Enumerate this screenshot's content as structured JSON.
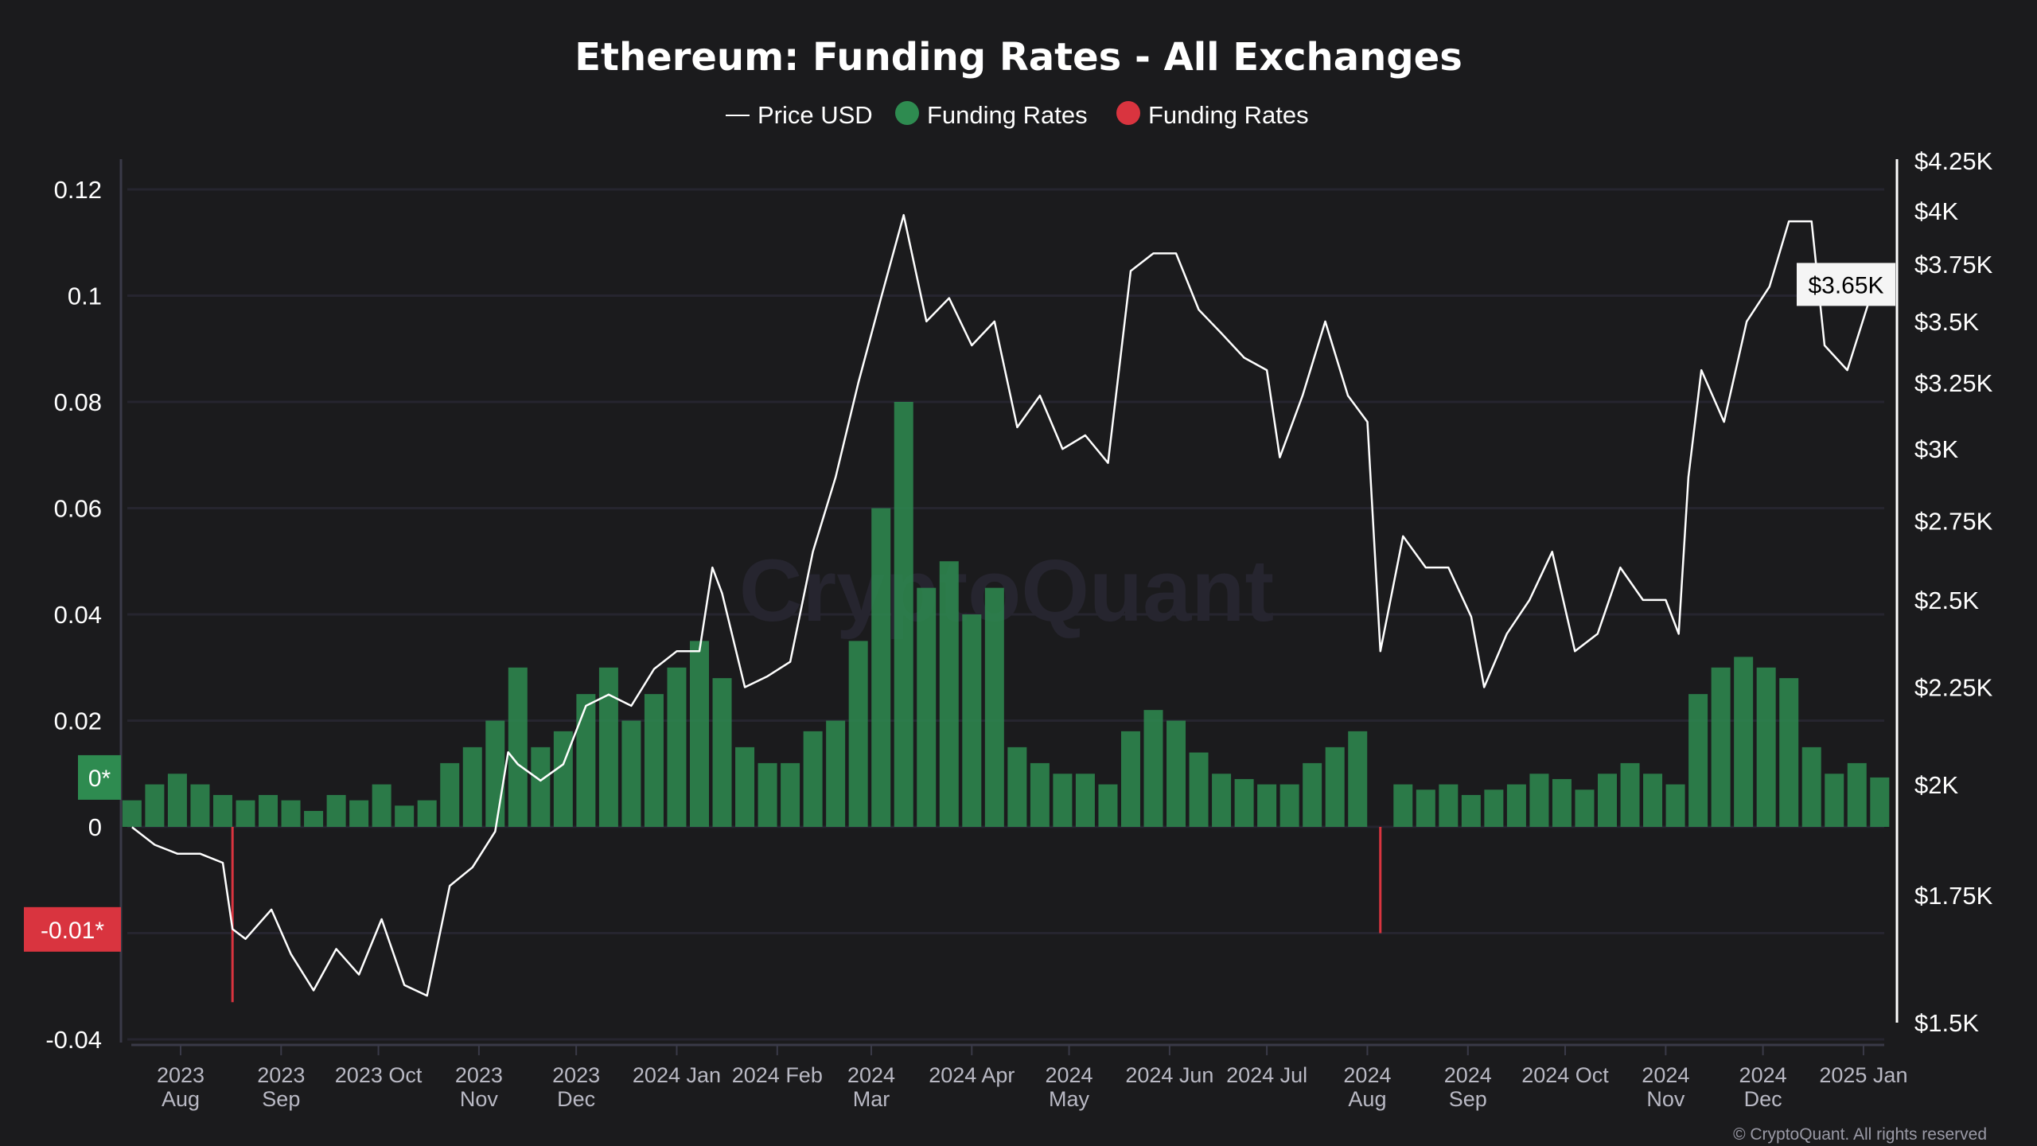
{
  "chart_data": {
    "type": "bar+line",
    "title": "Ethereum: Funding Rates - All Exchanges",
    "watermark": "CryptoQuant",
    "copyright": "© CryptoQuant. All rights reserved",
    "legend": {
      "placement": "top-center",
      "items": [
        {
          "label": "Price USD",
          "marker": "line",
          "color": "#ffffff"
        },
        {
          "label": "Funding Rates",
          "marker": "dot",
          "color": "#2e8b50"
        },
        {
          "label": "Funding Rates",
          "marker": "dot",
          "color": "#d9343f"
        }
      ]
    },
    "colors": {
      "background": "#1b1b1d",
      "positive": "#2e8b50",
      "negative": "#d9343f",
      "price": "#ffffff",
      "grid": "#26252f"
    },
    "left_axis": {
      "range": [
        -0.04,
        0.12
      ],
      "gridlines": [
        0.12,
        0.1,
        0.08,
        0.06,
        0.04,
        0.02,
        0,
        -0.02,
        -0.04
      ],
      "labels": [
        {
          "v": 0.12,
          "t": "0.12"
        },
        {
          "v": 0.1,
          "t": "0.1"
        },
        {
          "v": 0.08,
          "t": "0.08"
        },
        {
          "v": 0.06,
          "t": "0.06"
        },
        {
          "v": 0.04,
          "t": "0.04"
        },
        {
          "v": 0.02,
          "t": "0.02"
        },
        {
          "v": 0,
          "t": "0"
        },
        {
          "v": -0.04,
          "t": "-0.04"
        }
      ]
    },
    "right_axis": {
      "scale": "log",
      "labels": [
        {
          "v": 4250,
          "t": "$4.25K"
        },
        {
          "v": 4000,
          "t": "$4K"
        },
        {
          "v": 3750,
          "t": "$3.75K"
        },
        {
          "v": 3500,
          "t": "$3.5K"
        },
        {
          "v": 3250,
          "t": "$3.25K"
        },
        {
          "v": 3000,
          "t": "$3K"
        },
        {
          "v": 2750,
          "t": "$2.75K"
        },
        {
          "v": 2500,
          "t": "$2.5K"
        },
        {
          "v": 2250,
          "t": "$2.25K"
        },
        {
          "v": 2000,
          "t": "$2K"
        },
        {
          "v": 1750,
          "t": "$1.75K"
        },
        {
          "v": 1500,
          "t": "$1.5K"
        }
      ]
    },
    "badges": [
      {
        "text": "0*",
        "axis": "left",
        "v": 0.0093,
        "bg": "#2e8b50",
        "fg": "#ffffff"
      },
      {
        "text": "-0.01*",
        "axis": "left",
        "v": -0.0193,
        "bg": "#d9343f",
        "fg": "#ffffff"
      },
      {
        "text": "$3.65K",
        "axis": "right",
        "v": 3660,
        "bg": "#f5f5f5",
        "fg": "#000000"
      }
    ],
    "x_ticks": [
      {
        "date": "2023-08-01",
        "lines": [
          "2023",
          "Aug"
        ]
      },
      {
        "date": "2023-09-01",
        "lines": [
          "2023",
          "Sep"
        ]
      },
      {
        "date": "2023-10-01",
        "lines": [
          "2023 Oct"
        ]
      },
      {
        "date": "2023-11-01",
        "lines": [
          "2023",
          "Nov"
        ]
      },
      {
        "date": "2023-12-01",
        "lines": [
          "2023",
          "Dec"
        ]
      },
      {
        "date": "2024-01-01",
        "lines": [
          "2024 Jan"
        ]
      },
      {
        "date": "2024-02-01",
        "lines": [
          "2024 Feb"
        ]
      },
      {
        "date": "2024-03-01",
        "lines": [
          "2024",
          "Mar"
        ]
      },
      {
        "date": "2024-04-01",
        "lines": [
          "2024 Apr"
        ]
      },
      {
        "date": "2024-05-01",
        "lines": [
          "2024",
          "May"
        ]
      },
      {
        "date": "2024-06-01",
        "lines": [
          "2024 Jun"
        ]
      },
      {
        "date": "2024-07-01",
        "lines": [
          "2024 Jul"
        ]
      },
      {
        "date": "2024-08-01",
        "lines": [
          "2024",
          "Aug"
        ]
      },
      {
        "date": "2024-09-01",
        "lines": [
          "2024",
          "Sep"
        ]
      },
      {
        "date": "2024-10-01",
        "lines": [
          "2024 Oct"
        ]
      },
      {
        "date": "2024-11-01",
        "lines": [
          "2024",
          "Nov"
        ]
      },
      {
        "date": "2024-12-01",
        "lines": [
          "2024",
          "Dec"
        ]
      },
      {
        "date": "2025-01-01",
        "lines": [
          "2025 Jan"
        ]
      }
    ],
    "price_usd": [
      [
        "2023-07-17",
        1900
      ],
      [
        "2023-07-24",
        1860
      ],
      [
        "2023-07-31",
        1840
      ],
      [
        "2023-08-07",
        1840
      ],
      [
        "2023-08-14",
        1820
      ],
      [
        "2023-08-17",
        1680
      ],
      [
        "2023-08-21",
        1660
      ],
      [
        "2023-08-29",
        1720
      ],
      [
        "2023-09-04",
        1630
      ],
      [
        "2023-09-11",
        1560
      ],
      [
        "2023-09-18",
        1640
      ],
      [
        "2023-09-25",
        1590
      ],
      [
        "2023-10-02",
        1700
      ],
      [
        "2023-10-09",
        1570
      ],
      [
        "2023-10-16",
        1550
      ],
      [
        "2023-10-23",
        1770
      ],
      [
        "2023-10-30",
        1810
      ],
      [
        "2023-11-06",
        1890
      ],
      [
        "2023-11-10",
        2080
      ],
      [
        "2023-11-13",
        2050
      ],
      [
        "2023-11-20",
        2010
      ],
      [
        "2023-11-27",
        2050
      ],
      [
        "2023-12-04",
        2200
      ],
      [
        "2023-12-11",
        2230
      ],
      [
        "2023-12-18",
        2200
      ],
      [
        "2023-12-25",
        2300
      ],
      [
        "2024-01-01",
        2350
      ],
      [
        "2024-01-08",
        2350
      ],
      [
        "2024-01-12",
        2600
      ],
      [
        "2024-01-15",
        2520
      ],
      [
        "2024-01-22",
        2250
      ],
      [
        "2024-01-29",
        2280
      ],
      [
        "2024-02-05",
        2320
      ],
      [
        "2024-02-12",
        2650
      ],
      [
        "2024-02-19",
        2900
      ],
      [
        "2024-02-26",
        3250
      ],
      [
        "2024-03-04",
        3600
      ],
      [
        "2024-03-11",
        3980
      ],
      [
        "2024-03-18",
        3500
      ],
      [
        "2024-03-25",
        3600
      ],
      [
        "2024-04-01",
        3400
      ],
      [
        "2024-04-08",
        3500
      ],
      [
        "2024-04-15",
        3080
      ],
      [
        "2024-04-22",
        3200
      ],
      [
        "2024-04-29",
        3000
      ],
      [
        "2024-05-06",
        3050
      ],
      [
        "2024-05-13",
        2950
      ],
      [
        "2024-05-20",
        3720
      ],
      [
        "2024-05-27",
        3800
      ],
      [
        "2024-06-03",
        3800
      ],
      [
        "2024-06-10",
        3550
      ],
      [
        "2024-06-17",
        3450
      ],
      [
        "2024-06-24",
        3350
      ],
      [
        "2024-07-01",
        3300
      ],
      [
        "2024-07-05",
        2970
      ],
      [
        "2024-07-12",
        3200
      ],
      [
        "2024-07-19",
        3500
      ],
      [
        "2024-07-26",
        3200
      ],
      [
        "2024-08-01",
        3100
      ],
      [
        "2024-08-05",
        2350
      ],
      [
        "2024-08-12",
        2700
      ],
      [
        "2024-08-19",
        2600
      ],
      [
        "2024-08-26",
        2600
      ],
      [
        "2024-09-02",
        2450
      ],
      [
        "2024-09-06",
        2250
      ],
      [
        "2024-09-13",
        2400
      ],
      [
        "2024-09-20",
        2500
      ],
      [
        "2024-09-27",
        2650
      ],
      [
        "2024-10-04",
        2350
      ],
      [
        "2024-10-11",
        2400
      ],
      [
        "2024-10-18",
        2600
      ],
      [
        "2024-10-25",
        2500
      ],
      [
        "2024-11-01",
        2500
      ],
      [
        "2024-11-05",
        2400
      ],
      [
        "2024-11-08",
        2900
      ],
      [
        "2024-11-12",
        3300
      ],
      [
        "2024-11-19",
        3100
      ],
      [
        "2024-11-26",
        3500
      ],
      [
        "2024-12-03",
        3650
      ],
      [
        "2024-12-09",
        3950
      ],
      [
        "2024-12-16",
        3950
      ],
      [
        "2024-12-20",
        3400
      ],
      [
        "2024-12-27",
        3300
      ],
      [
        "2025-01-03",
        3600
      ],
      [
        "2025-01-06",
        3660
      ]
    ],
    "funding_rates": [
      [
        "2023-07-17",
        0.005
      ],
      [
        "2023-07-24",
        0.008
      ],
      [
        "2023-07-31",
        0.01
      ],
      [
        "2023-08-07",
        0.008
      ],
      [
        "2023-08-14",
        0.006
      ],
      [
        "2023-08-17",
        -0.033
      ],
      [
        "2023-08-21",
        0.005
      ],
      [
        "2023-08-28",
        0.006
      ],
      [
        "2023-09-04",
        0.005
      ],
      [
        "2023-09-11",
        0.003
      ],
      [
        "2023-09-18",
        0.006
      ],
      [
        "2023-09-25",
        0.005
      ],
      [
        "2023-10-02",
        0.008
      ],
      [
        "2023-10-09",
        0.004
      ],
      [
        "2023-10-16",
        0.005
      ],
      [
        "2023-10-23",
        0.012
      ],
      [
        "2023-10-30",
        0.015
      ],
      [
        "2023-11-06",
        0.02
      ],
      [
        "2023-11-13",
        0.03
      ],
      [
        "2023-11-20",
        0.015
      ],
      [
        "2023-11-27",
        0.018
      ],
      [
        "2023-12-04",
        0.025
      ],
      [
        "2023-12-11",
        0.03
      ],
      [
        "2023-12-18",
        0.02
      ],
      [
        "2023-12-25",
        0.025
      ],
      [
        "2024-01-01",
        0.03
      ],
      [
        "2024-01-08",
        0.035
      ],
      [
        "2024-01-15",
        0.028
      ],
      [
        "2024-01-22",
        0.015
      ],
      [
        "2024-01-29",
        0.012
      ],
      [
        "2024-02-05",
        0.012
      ],
      [
        "2024-02-12",
        0.018
      ],
      [
        "2024-02-19",
        0.02
      ],
      [
        "2024-02-26",
        0.035
      ],
      [
        "2024-03-04",
        0.06
      ],
      [
        "2024-03-11",
        0.08
      ],
      [
        "2024-03-18",
        0.045
      ],
      [
        "2024-03-25",
        0.05
      ],
      [
        "2024-04-01",
        0.04
      ],
      [
        "2024-04-08",
        0.045
      ],
      [
        "2024-04-15",
        0.015
      ],
      [
        "2024-04-22",
        0.012
      ],
      [
        "2024-04-29",
        0.01
      ],
      [
        "2024-05-06",
        0.01
      ],
      [
        "2024-05-13",
        0.008
      ],
      [
        "2024-05-20",
        0.018
      ],
      [
        "2024-05-27",
        0.022
      ],
      [
        "2024-06-03",
        0.02
      ],
      [
        "2024-06-10",
        0.014
      ],
      [
        "2024-06-17",
        0.01
      ],
      [
        "2024-06-24",
        0.009
      ],
      [
        "2024-07-01",
        0.008
      ],
      [
        "2024-07-08",
        0.008
      ],
      [
        "2024-07-15",
        0.012
      ],
      [
        "2024-07-22",
        0.015
      ],
      [
        "2024-07-29",
        0.018
      ],
      [
        "2024-08-05",
        -0.02
      ],
      [
        "2024-08-12",
        0.008
      ],
      [
        "2024-08-19",
        0.007
      ],
      [
        "2024-08-26",
        0.008
      ],
      [
        "2024-09-02",
        0.006
      ],
      [
        "2024-09-09",
        0.007
      ],
      [
        "2024-09-16",
        0.008
      ],
      [
        "2024-09-23",
        0.01
      ],
      [
        "2024-09-30",
        0.009
      ],
      [
        "2024-10-07",
        0.007
      ],
      [
        "2024-10-14",
        0.01
      ],
      [
        "2024-10-21",
        0.012
      ],
      [
        "2024-10-28",
        0.01
      ],
      [
        "2024-11-04",
        0.008
      ],
      [
        "2024-11-11",
        0.025
      ],
      [
        "2024-11-18",
        0.03
      ],
      [
        "2024-11-25",
        0.032
      ],
      [
        "2024-12-02",
        0.03
      ],
      [
        "2024-12-09",
        0.028
      ],
      [
        "2024-12-16",
        0.015
      ],
      [
        "2024-12-23",
        0.01
      ],
      [
        "2024-12-30",
        0.012
      ],
      [
        "2025-01-06",
        0.0093
      ]
    ]
  }
}
